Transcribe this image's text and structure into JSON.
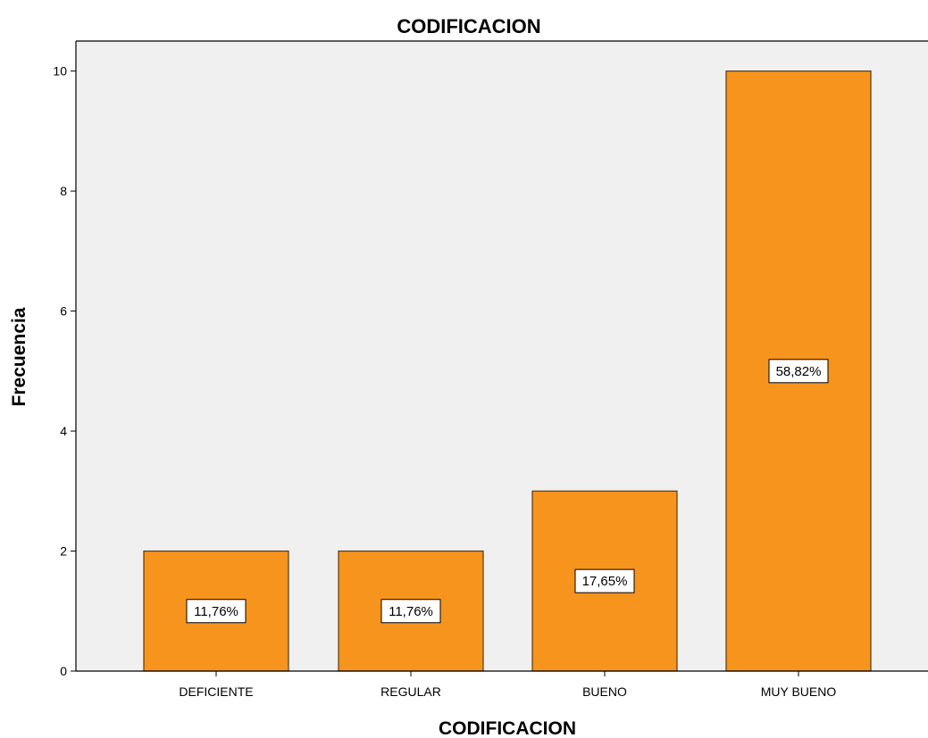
{
  "chart_data": {
    "type": "bar",
    "title": "CODIFICACION",
    "xlabel": "CODIFICACION",
    "ylabel": "Frecuencia",
    "categories": [
      "DEFICIENTE",
      "REGULAR",
      "BUENO",
      "MUY BUENO"
    ],
    "values": [
      2,
      2,
      3,
      10
    ],
    "data_labels": [
      "11,76%",
      "11,76%",
      "17,65%",
      "58,82%"
    ],
    "yticks": [
      "0",
      "2",
      "4",
      "6",
      "8",
      "10"
    ],
    "ylim": [
      0,
      10.5
    ],
    "grid": false,
    "legend": "none",
    "colors": {
      "bar_fill": "#F7941D",
      "bar_stroke": "#5a3a10",
      "plot_bg": "#F0F0F0",
      "label_bg": "#ffffff"
    }
  }
}
